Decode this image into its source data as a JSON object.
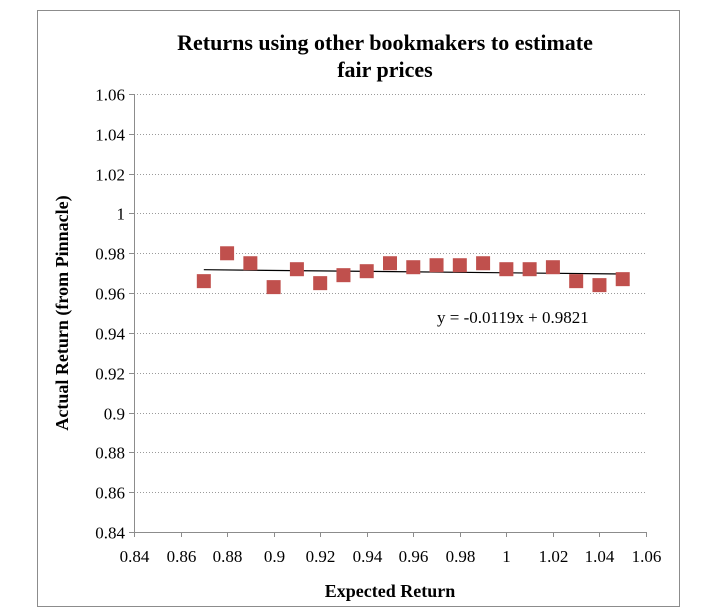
{
  "chart_data": {
    "type": "scatter",
    "title_lines": [
      "Returns using other bookmakers to estimate",
      "fair prices"
    ],
    "xlabel": "Expected Return",
    "ylabel": "Actual Return (from Pinnacle)",
    "xlim": [
      0.84,
      1.06
    ],
    "ylim": [
      0.84,
      1.06
    ],
    "x_ticks": [
      0.84,
      0.86,
      0.88,
      0.9,
      0.92,
      0.94,
      0.96,
      0.98,
      1,
      1.02,
      1.04,
      1.06
    ],
    "x_tick_labels": [
      "0.84",
      "0.86",
      "0.88",
      "0.9",
      "0.92",
      "0.94",
      "0.96",
      "0.98",
      "1",
      "1.02",
      "1.04",
      "1.06"
    ],
    "y_ticks": [
      0.84,
      0.86,
      0.88,
      0.9,
      0.92,
      0.94,
      0.96,
      0.98,
      1,
      1.02,
      1.04,
      1.06
    ],
    "y_tick_labels": [
      "0.84",
      "0.86",
      "0.88",
      "0.9",
      "0.92",
      "0.94",
      "0.96",
      "0.98",
      "1",
      "1.02",
      "1.04",
      "1.06"
    ],
    "grid": "horizontal dotted",
    "legend": "none",
    "series": [
      {
        "marker": "square",
        "color": "#c0504d",
        "x": [
          0.87,
          0.88,
          0.89,
          0.9,
          0.91,
          0.92,
          0.93,
          0.94,
          0.95,
          0.96,
          0.97,
          0.98,
          0.99,
          1.0,
          1.01,
          1.02,
          1.03,
          1.04,
          1.05
        ],
        "y": [
          0.966,
          0.98,
          0.975,
          0.963,
          0.972,
          0.965,
          0.969,
          0.971,
          0.975,
          0.973,
          0.974,
          0.974,
          0.975,
          0.972,
          0.972,
          0.973,
          0.966,
          0.964,
          0.967
        ]
      }
    ],
    "trendline": {
      "type": "linear",
      "slope": -0.0119,
      "intercept": 0.9821,
      "x_range": [
        0.87,
        1.05
      ],
      "color": "#000000",
      "equation_label": "y = -0.0119x + 0.9821"
    }
  }
}
